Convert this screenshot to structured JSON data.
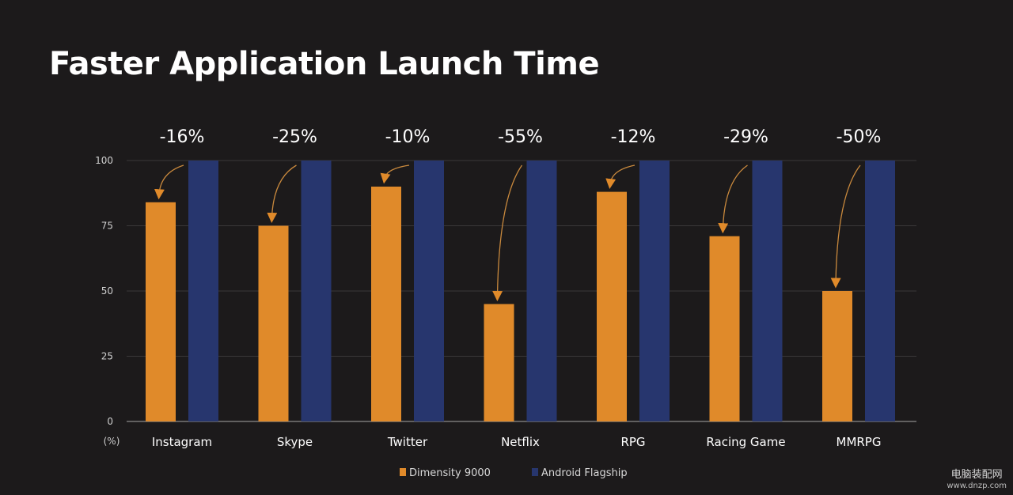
{
  "title": "Faster Application Launch Time",
  "chart_data": {
    "type": "bar",
    "categories": [
      "Instagram",
      "Skype",
      "Twitter",
      "Netflix",
      "RPG",
      "Racing Game",
      "MMRPG"
    ],
    "series": [
      {
        "name": "Dimensity 9000",
        "values": [
          84,
          75,
          90,
          45,
          88,
          71,
          50
        ],
        "color": "#e08a2a"
      },
      {
        "name": "Android Flagship",
        "values": [
          100,
          100,
          100,
          100,
          100,
          100,
          100
        ],
        "color": "#27366e"
      }
    ],
    "annotations": [
      "-16%",
      "-25%",
      "-10%",
      "-55%",
      "-12%",
      "-29%",
      "-50%"
    ],
    "y_ticks": [
      "0",
      "25",
      "50",
      "75",
      "100"
    ],
    "y_unit_label": "(%)",
    "ylim": [
      0,
      100
    ],
    "grid": true,
    "legend_position": "bottom-center"
  },
  "watermark": {
    "line1": "电脑装配网",
    "line2": "www.dnzp.com"
  }
}
